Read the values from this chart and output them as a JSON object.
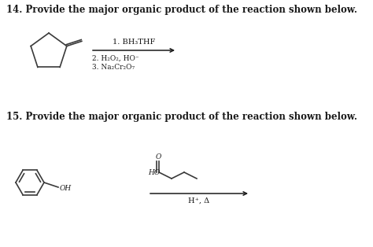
{
  "title14": "14. Provide the major organic product of the reaction shown below.",
  "title15": "15. Provide the major organic product of the reaction shown below.",
  "reagents14_line1": "1. BH₃THF",
  "reagents14_line2": "2. H₂O₂, HO⁻",
  "reagents14_line3": "3. Na₂Cr₂O₇",
  "reagents15": "H⁺, Δ",
  "bg_color": "#ffffff",
  "text_color": "#1a1a1a",
  "structure_color": "#3a3a3a",
  "font_size_title": 8.5,
  "font_size_reagents": 7.0,
  "font_size_label": 6.5
}
